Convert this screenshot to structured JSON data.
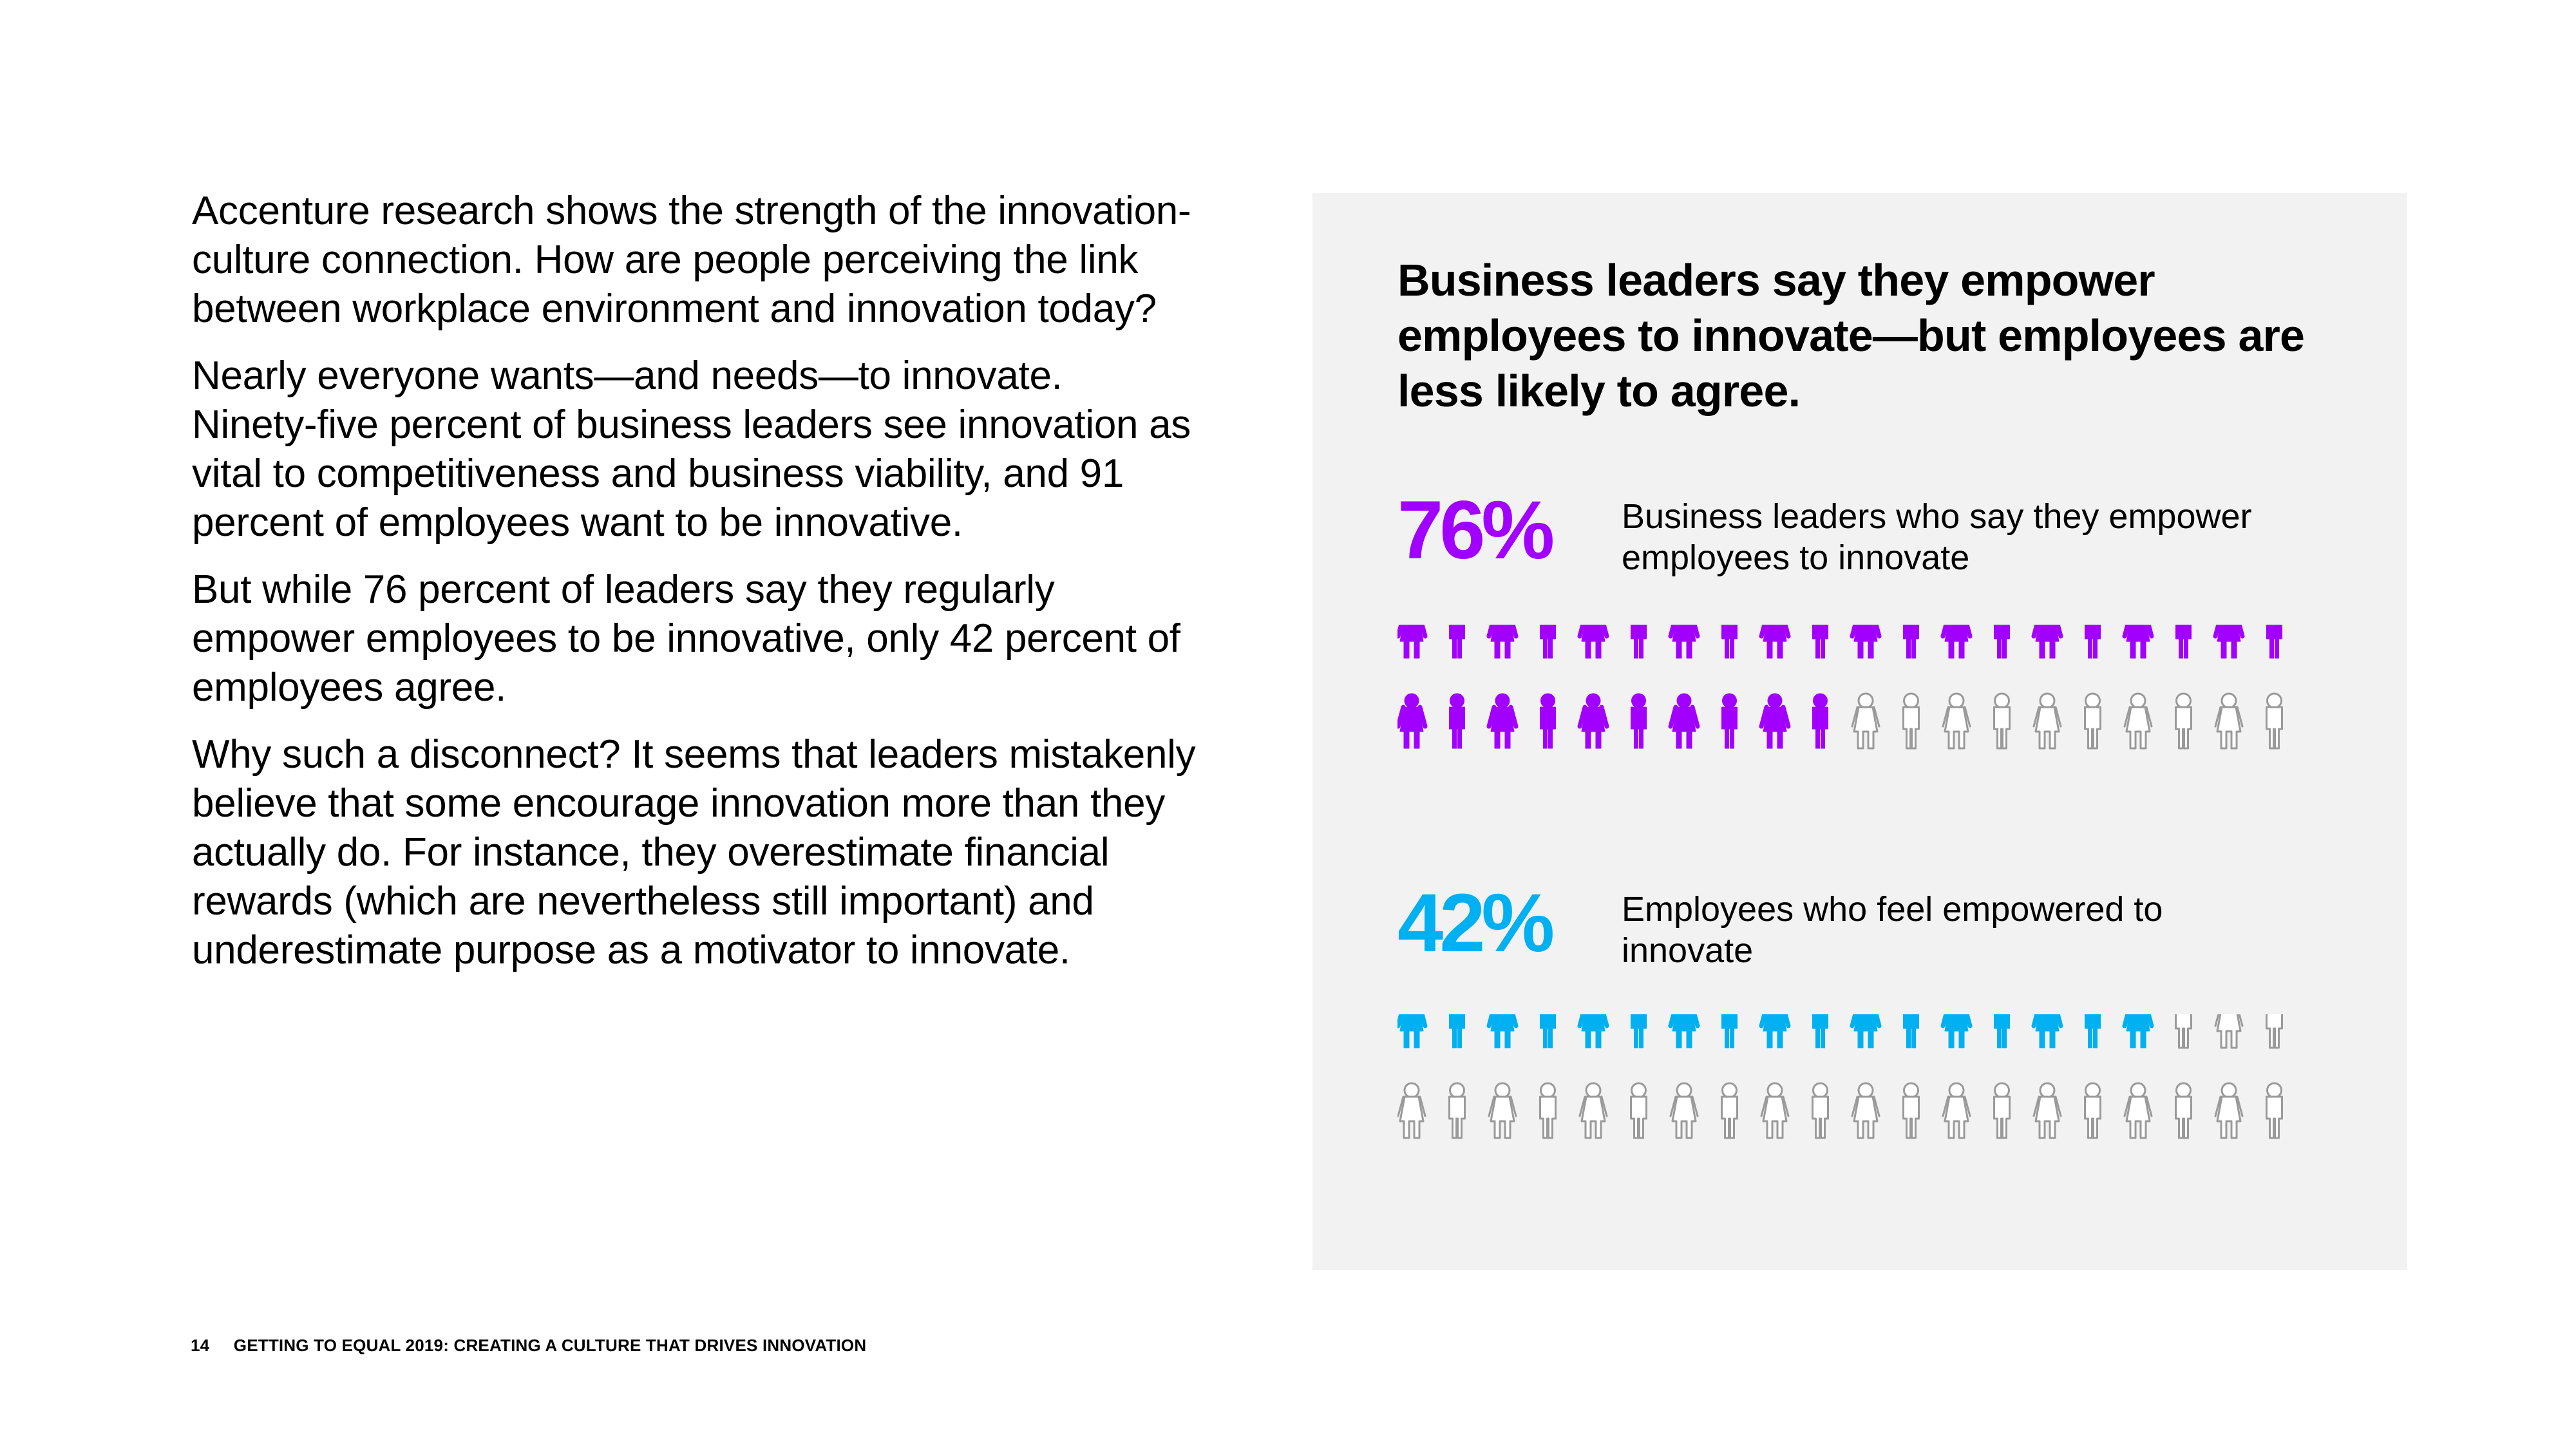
{
  "body_paragraphs": [
    "Accenture research shows the strength of the innovation-culture connection. How are people perceiving the link between workplace environment and innovation today?",
    "Nearly everyone wants—and needs—to innovate. Ninety-five percent of business leaders see innovation as vital to competitiveness and business viability, and 91 percent of employees want to be innovative.",
    "But while 76 percent of leaders say they regularly empower employees to be innovative, only 42 percent of employees agree.",
    "Why such a disconnect? It seems that leaders mistakenly believe that some encourage innovation more than they actually do. For instance, they overestimate financial rewards (which are nevertheless still important) and underestimate purpose as a motivator to innovate."
  ],
  "panel": {
    "title": "Business leaders say they empower employees to innovate—but employees are less likely to agree.",
    "stats": [
      {
        "percent_text": "76%",
        "value": 76,
        "label": "Business leaders who say they empower employees to innovate",
        "color": "#a100ff",
        "icon": "person-pictogram"
      },
      {
        "percent_text": "42%",
        "value": 42,
        "label": "Employees who feel empowered to innovate",
        "color": "#00b0f0",
        "icon": "person-pictogram"
      }
    ],
    "empty_icon_outline_color": "#9a9a9a"
  },
  "footer": {
    "page_number": "14",
    "title": "GETTING TO EQUAL 2019: CREATING A CULTURE THAT DRIVES INNOVATION"
  }
}
